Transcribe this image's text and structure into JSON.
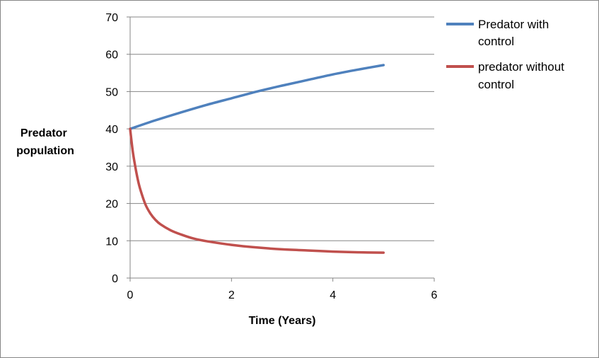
{
  "chart_data": {
    "type": "line",
    "xlabel": "Time (Years)",
    "ylabel": [
      "Predator",
      "population"
    ],
    "xlim": [
      0,
      6
    ],
    "ylim": [
      0,
      70
    ],
    "xticks": [
      0,
      2,
      4,
      6
    ],
    "yticks": [
      0,
      10,
      20,
      30,
      40,
      50,
      60,
      70
    ],
    "grid": "horizontal",
    "legend": "right",
    "series": [
      {
        "name": [
          "Predator with",
          "control"
        ],
        "color": "#4F81BD",
        "x": [
          0,
          0.5,
          1,
          1.5,
          2,
          2.5,
          3,
          3.5,
          4,
          4.5,
          5
        ],
        "y": [
          40,
          42.3,
          44.4,
          46.4,
          48.2,
          50,
          51.6,
          53.1,
          54.6,
          55.9,
          57.1
        ]
      },
      {
        "name": [
          "predator without",
          "control"
        ],
        "color": "#C0504D",
        "x": [
          0,
          0.05,
          0.1,
          0.15,
          0.2,
          0.3,
          0.4,
          0.5,
          0.6,
          0.8,
          1,
          1.25,
          1.5,
          2,
          2.5,
          3,
          3.5,
          4,
          4.5,
          5
        ],
        "y": [
          40,
          34.2,
          30,
          26.5,
          23.8,
          19.8,
          17.3,
          15.6,
          14.4,
          12.8,
          11.7,
          10.6,
          9.9,
          8.9,
          8.2,
          7.7,
          7.4,
          7.1,
          6.9,
          6.8
        ]
      }
    ]
  }
}
